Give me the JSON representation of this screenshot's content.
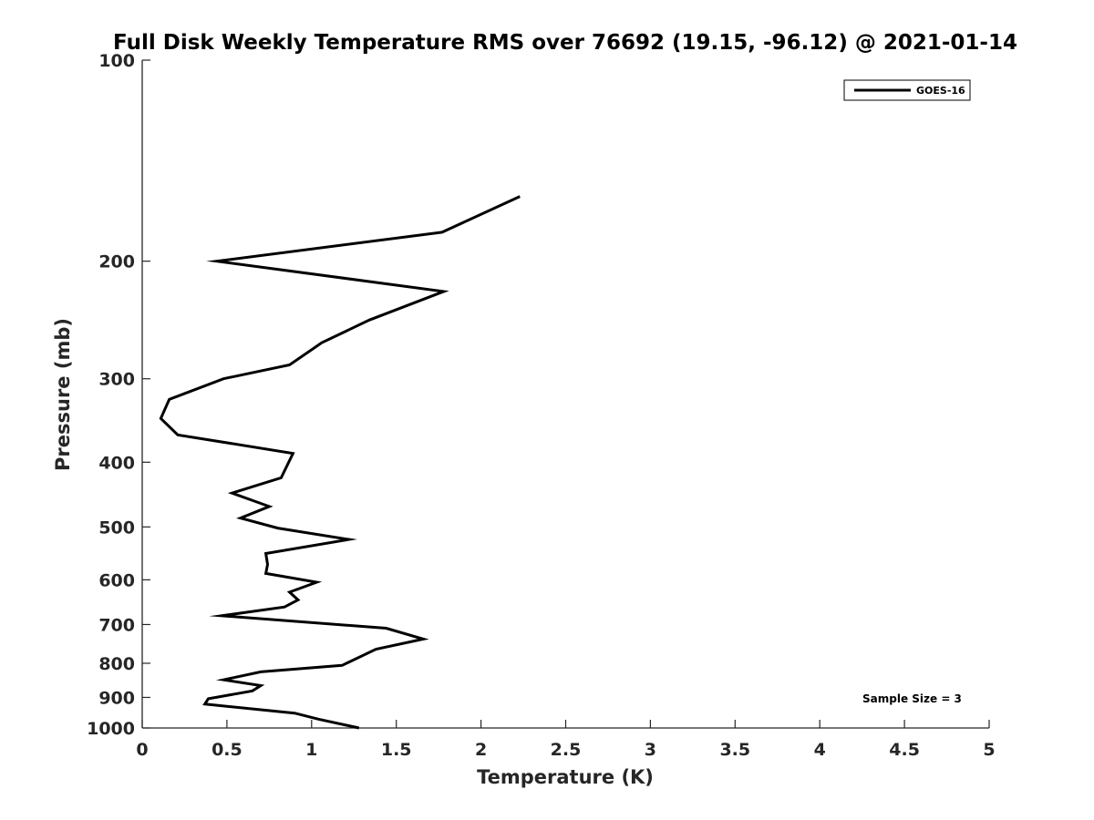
{
  "chart_data": {
    "type": "line",
    "title": "Full Disk Weekly Temperature RMS over 76692 (19.15, -96.12) @ 2021-01-14",
    "xlabel": "Temperature (K)",
    "ylabel": "Pressure (mb)",
    "xlim": [
      0,
      5
    ],
    "ylim": [
      100,
      1000
    ],
    "y_scale": "log",
    "y_reversed": true,
    "x_ticks": [
      "0",
      "0.5",
      "1",
      "1.5",
      "2",
      "2.5",
      "3",
      "3.5",
      "4",
      "4.5",
      "5"
    ],
    "y_ticks": [
      "100",
      "200",
      "300",
      "400",
      "500",
      "600",
      "700",
      "800",
      "900",
      "1000"
    ],
    "grid": false,
    "legend_position": "top-right",
    "line_color": "#000000",
    "series": [
      {
        "name": "GOES-16",
        "points": [
          {
            "x": 2.23,
            "p": 160
          },
          {
            "x": 1.77,
            "p": 181
          },
          {
            "x": 0.44,
            "p": 200
          },
          {
            "x": 1.78,
            "p": 222
          },
          {
            "x": 1.34,
            "p": 245
          },
          {
            "x": 1.06,
            "p": 265
          },
          {
            "x": 0.87,
            "p": 286
          },
          {
            "x": 0.48,
            "p": 300
          },
          {
            "x": 0.16,
            "p": 322
          },
          {
            "x": 0.11,
            "p": 344
          },
          {
            "x": 0.21,
            "p": 364
          },
          {
            "x": 0.89,
            "p": 388
          },
          {
            "x": 0.82,
            "p": 422
          },
          {
            "x": 0.53,
            "p": 445
          },
          {
            "x": 0.75,
            "p": 466
          },
          {
            "x": 0.58,
            "p": 485
          },
          {
            "x": 0.8,
            "p": 502
          },
          {
            "x": 1.22,
            "p": 522
          },
          {
            "x": 0.73,
            "p": 548
          },
          {
            "x": 0.74,
            "p": 569
          },
          {
            "x": 0.73,
            "p": 587
          },
          {
            "x": 1.03,
            "p": 605
          },
          {
            "x": 0.87,
            "p": 626
          },
          {
            "x": 0.92,
            "p": 643
          },
          {
            "x": 0.84,
            "p": 659
          },
          {
            "x": 0.47,
            "p": 679
          },
          {
            "x": 1.44,
            "p": 709
          },
          {
            "x": 1.66,
            "p": 736
          },
          {
            "x": 1.38,
            "p": 762
          },
          {
            "x": 1.18,
            "p": 806
          },
          {
            "x": 0.7,
            "p": 824
          },
          {
            "x": 0.48,
            "p": 847
          },
          {
            "x": 0.7,
            "p": 864
          },
          {
            "x": 0.65,
            "p": 880
          },
          {
            "x": 0.39,
            "p": 904
          },
          {
            "x": 0.37,
            "p": 921
          },
          {
            "x": 0.9,
            "p": 950
          },
          {
            "x": 1.04,
            "p": 970
          },
          {
            "x": 1.28,
            "p": 1000
          }
        ]
      }
    ],
    "annotations": [
      "Sample Size = 3"
    ]
  }
}
